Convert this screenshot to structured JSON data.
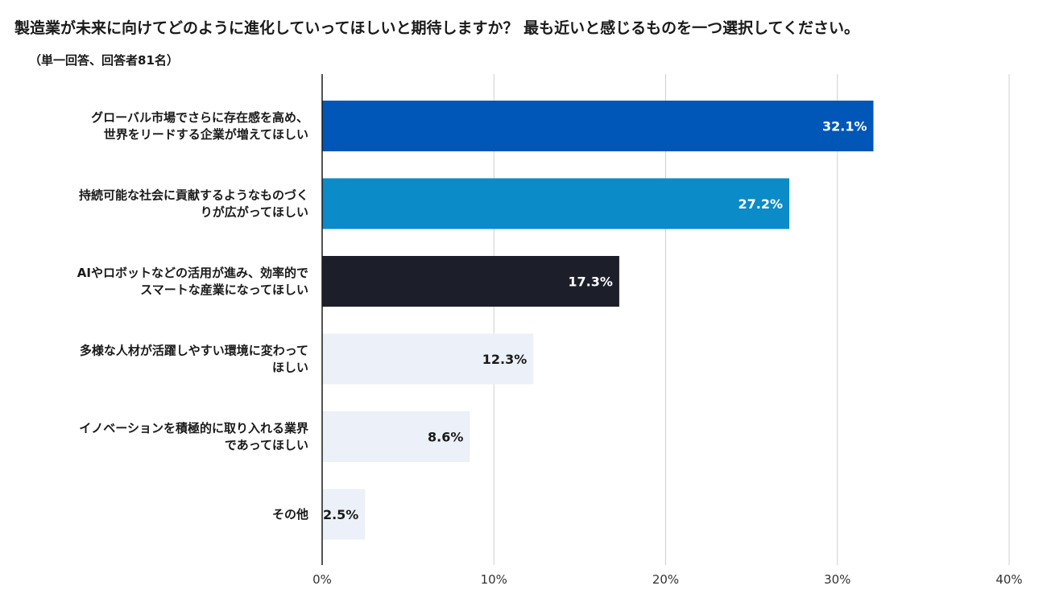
{
  "chart_data": {
    "type": "bar",
    "orientation": "horizontal",
    "title": "製造業が未来に向けてどのように進化していってほしいと期待しますか？ 最も近いと感じるものを一つ選択してください。",
    "subtitle": "（単一回答、回答者81名）",
    "unit": "%",
    "xlim": [
      0,
      40
    ],
    "ticks": [
      "0%",
      "10%",
      "20%",
      "30%",
      "40%"
    ],
    "grid": true,
    "categories": [
      [
        "グローバル市場でさらに存在感を高め、",
        "世界をリードする企業が増えてほしい"
      ],
      [
        "持続可能な社会に貢献するようなものづく",
        "りが広がってほしい"
      ],
      [
        "AIやロボットなどの活用が進み、効率的で",
        "スマートな産業になってほしい"
      ],
      [
        "多様な人材が活躍しやすい環境に変わって",
        "ほしい"
      ],
      [
        "イノベーションを積極的に取り入れる業界",
        "であってほしい"
      ],
      [
        "その他"
      ]
    ],
    "values": [
      32.1,
      27.2,
      17.3,
      12.3,
      8.6,
      2.5
    ],
    "value_labels": [
      "32.1%",
      "27.2%",
      "17.3%",
      "12.3%",
      "8.6%",
      "2.5%"
    ],
    "colors": [
      "#0057b7",
      "#0b8bc8",
      "#1c1f2a",
      "#ecf0f8",
      "#ecf0f8",
      "#ecf0f8"
    ],
    "label_colors": [
      "#ffffff",
      "#ffffff",
      "#ffffff",
      "#1a1a1a",
      "#1a1a1a",
      "#1a1a1a"
    ]
  }
}
